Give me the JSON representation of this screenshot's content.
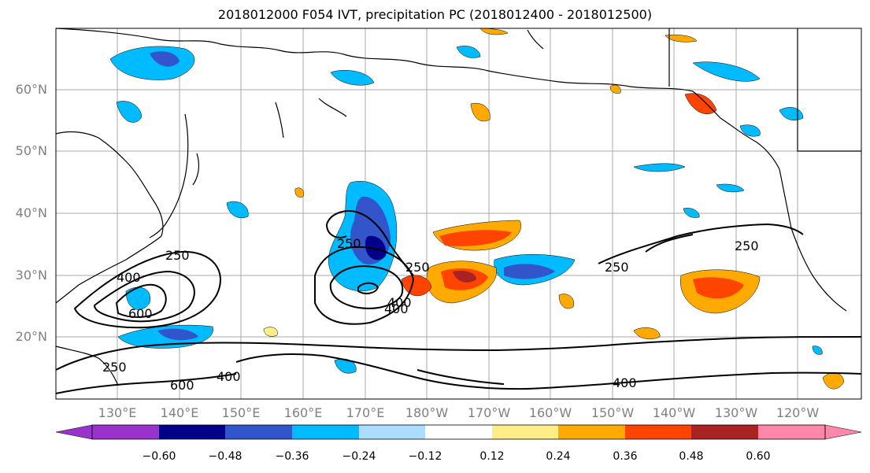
{
  "title": "2018012000 F054 IVT, precipitation PC (2018012400 - 2018012500)",
  "map": {
    "lat_labels": [
      "60°N",
      "50°N",
      "40°N",
      "30°N",
      "20°N"
    ],
    "lon_labels": [
      "130°E",
      "140°E",
      "150°E",
      "160°E",
      "170°E",
      "180°W",
      "170°W",
      "160°W",
      "150°W",
      "140°W",
      "130°W",
      "120°W"
    ],
    "contour_labels": [
      "250",
      "400",
      "600",
      "250",
      "400",
      "250",
      "250",
      "250",
      "250",
      "400",
      "600",
      "400",
      "400"
    ]
  },
  "colorbar": {
    "colors": [
      "#9933cc",
      "#000088",
      "#3355cc",
      "#00bbff",
      "#aaddff",
      "#ffffff",
      "#ffee88",
      "#ffaa00",
      "#ff4400",
      "#aa2222",
      "#ff88aa"
    ],
    "ticks": [
      "−0.60",
      "−0.48",
      "−0.36",
      "−0.24",
      "−0.12",
      "0.12",
      "0.24",
      "0.36",
      "0.48",
      "0.60"
    ]
  }
}
